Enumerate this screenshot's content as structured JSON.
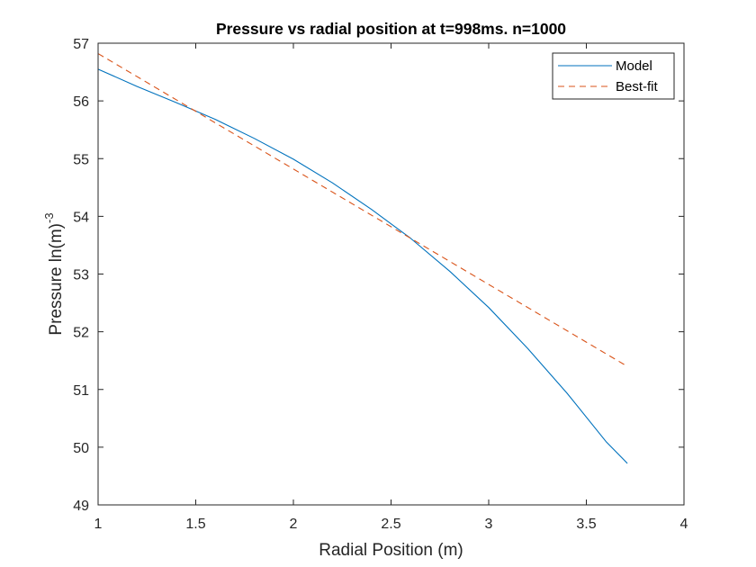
{
  "chart_data": {
    "type": "line",
    "title": "Pressure vs radial position at t=998ms. n=1000",
    "xlabel": "Radial Position (m)",
    "ylabel": {
      "main": "Pressure ln(m)",
      "superscript": "-3"
    },
    "xlim": [
      1,
      4
    ],
    "ylim": [
      49,
      57
    ],
    "xticks": [
      "1",
      "1.5",
      "2",
      "2.5",
      "3",
      "3.5",
      "4"
    ],
    "yticks": [
      "49",
      "50",
      "51",
      "52",
      "53",
      "54",
      "55",
      "56",
      "57"
    ],
    "grid": false,
    "legend": {
      "placement": "top-right",
      "entries": [
        "Model",
        "Best-fit"
      ]
    },
    "series": [
      {
        "name": "Model",
        "color": "#0072BD",
        "style": "solid",
        "x": [
          1.0,
          1.2,
          1.4,
          1.6,
          1.8,
          2.0,
          2.2,
          2.4,
          2.6,
          2.8,
          3.0,
          3.2,
          3.4,
          3.6,
          3.71
        ],
        "y": [
          56.55,
          56.25,
          55.97,
          55.68,
          55.35,
          54.99,
          54.58,
          54.12,
          53.62,
          53.05,
          52.42,
          51.71,
          50.94,
          50.1,
          49.72
        ]
      },
      {
        "name": "Best-fit",
        "color": "#D95319",
        "style": "dashed",
        "x": [
          1.0,
          3.71
        ],
        "y": [
          56.82,
          51.4
        ]
      }
    ]
  }
}
